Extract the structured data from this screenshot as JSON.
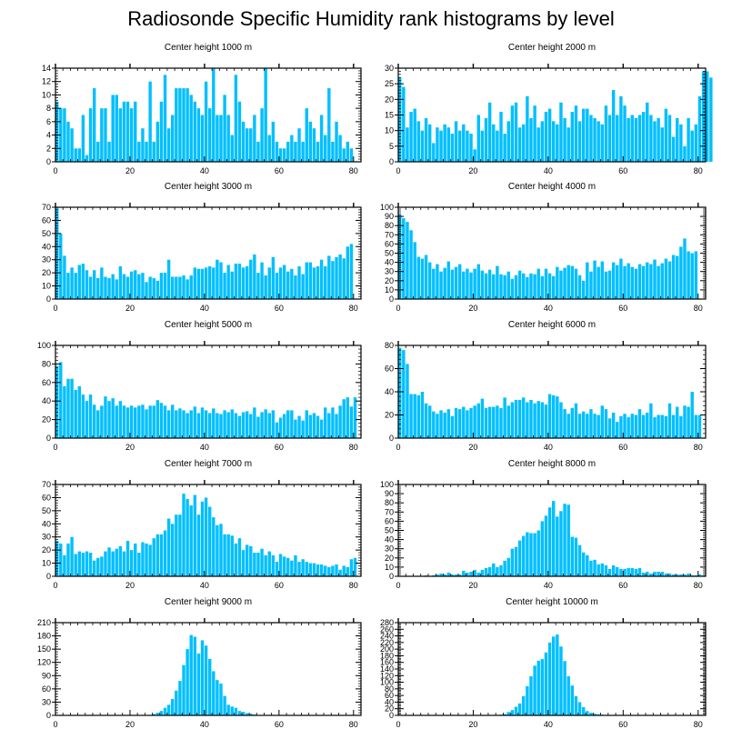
{
  "page_title": "Radiosonde Specific Humidity rank histograms by level",
  "colors": {
    "bar": "#00bfff",
    "axis": "#000000",
    "background": "#ffffff"
  },
  "chart_data": [
    {
      "type": "bar",
      "title": "Center height 1000 m",
      "xlim": [
        0,
        82
      ],
      "ylim": [
        0,
        14
      ],
      "xticks": [
        0,
        20,
        40,
        60,
        80
      ],
      "yticks": [
        0,
        2,
        4,
        6,
        8,
        10,
        12,
        14
      ],
      "x_start": 0,
      "values": [
        9,
        8,
        8,
        6,
        5,
        2,
        2,
        7,
        1,
        8,
        11,
        3,
        8,
        8,
        3,
        10,
        10,
        8,
        9,
        9,
        8,
        9,
        3,
        5,
        3,
        12,
        3,
        6,
        9,
        13,
        5,
        7,
        11,
        11,
        11,
        11,
        10,
        9,
        8,
        7,
        12,
        8,
        14,
        7,
        7,
        10,
        7,
        4,
        13,
        9,
        6,
        5,
        5,
        7,
        3,
        8,
        14,
        4,
        6,
        3,
        2,
        2,
        3,
        4,
        3,
        5,
        3,
        8,
        6,
        5,
        3,
        7,
        4,
        11,
        3,
        6,
        4,
        2,
        3,
        2
      ],
      "xlabel": "",
      "ylabel": ""
    },
    {
      "type": "bar",
      "title": "Center height 2000 m",
      "xlim": [
        0,
        82
      ],
      "ylim": [
        0,
        30
      ],
      "xticks": [
        0,
        20,
        40,
        60,
        80
      ],
      "yticks": [
        0,
        5,
        10,
        15,
        20,
        25,
        30
      ],
      "x_start": 0,
      "values": [
        27,
        24,
        11,
        16,
        17,
        13,
        10,
        14,
        12,
        6,
        11,
        10,
        12,
        11,
        9,
        13,
        10,
        12,
        10,
        9,
        4,
        15,
        10,
        14,
        19,
        12,
        10,
        16,
        9,
        13,
        18,
        19,
        11,
        12,
        21,
        14,
        18,
        11,
        13,
        16,
        17,
        13,
        12,
        19,
        14,
        11,
        16,
        18,
        13,
        17,
        17,
        15,
        14,
        13,
        12,
        18,
        15,
        23,
        15,
        21,
        18,
        14,
        15,
        14,
        15,
        16,
        19,
        15,
        13,
        14,
        11,
        17,
        15,
        8,
        14,
        12,
        5,
        14,
        10,
        12,
        21,
        29,
        29,
        27
      ],
      "xlabel": "",
      "ylabel": ""
    },
    {
      "type": "bar",
      "title": "Center height 3000 m",
      "xlim": [
        0,
        82
      ],
      "ylim": [
        0,
        70
      ],
      "xticks": [
        0,
        20,
        40,
        60,
        80
      ],
      "yticks": [
        0,
        10,
        20,
        30,
        40,
        50,
        60,
        70
      ],
      "x_start": 0,
      "values": [
        70,
        50,
        33,
        20,
        24,
        20,
        26,
        27,
        22,
        17,
        22,
        16,
        24,
        17,
        16,
        19,
        15,
        25,
        19,
        17,
        21,
        22,
        19,
        20,
        13,
        17,
        16,
        14,
        20,
        20,
        30,
        17,
        17,
        17,
        18,
        15,
        18,
        24,
        23,
        23,
        24,
        25,
        24,
        30,
        28,
        20,
        26,
        21,
        27,
        27,
        24,
        25,
        30,
        34,
        20,
        28,
        18,
        24,
        32,
        20,
        24,
        26,
        21,
        23,
        18,
        25,
        19,
        28,
        28,
        24,
        25,
        30,
        25,
        33,
        29,
        32,
        34,
        31,
        40,
        42
      ],
      "xlabel": "",
      "ylabel": ""
    },
    {
      "type": "bar",
      "title": "Center height 4000 m",
      "xlim": [
        0,
        82
      ],
      "ylim": [
        0,
        100
      ],
      "xticks": [
        0,
        20,
        40,
        60,
        80
      ],
      "yticks": [
        0,
        10,
        20,
        30,
        40,
        50,
        60,
        70,
        80,
        90,
        100
      ],
      "x_start": 0,
      "values": [
        92,
        88,
        84,
        75,
        62,
        46,
        44,
        48,
        40,
        33,
        38,
        30,
        34,
        41,
        32,
        35,
        38,
        30,
        33,
        29,
        33,
        38,
        31,
        28,
        32,
        27,
        36,
        27,
        26,
        30,
        22,
        26,
        31,
        28,
        24,
        28,
        27,
        33,
        25,
        33,
        28,
        25,
        35,
        31,
        34,
        37,
        36,
        33,
        26,
        20,
        40,
        30,
        42,
        35,
        41,
        30,
        31,
        40,
        37,
        44,
        36,
        39,
        35,
        33,
        38,
        36,
        40,
        38,
        43,
        36,
        39,
        44,
        41,
        48,
        47,
        57,
        66,
        52,
        50,
        52
      ],
      "xlabel": "",
      "ylabel": ""
    },
    {
      "type": "bar",
      "title": "Center height 5000 m",
      "xlim": [
        0,
        82
      ],
      "ylim": [
        0,
        100
      ],
      "xticks": [
        0,
        20,
        40,
        60,
        80
      ],
      "yticks": [
        0,
        20,
        40,
        60,
        80,
        100
      ],
      "x_start": 0,
      "values": [
        78,
        82,
        56,
        64,
        64,
        52,
        56,
        47,
        40,
        47,
        36,
        30,
        35,
        45,
        40,
        43,
        35,
        40,
        35,
        33,
        35,
        33,
        35,
        36,
        31,
        35,
        35,
        41,
        38,
        35,
        30,
        36,
        30,
        32,
        30,
        27,
        30,
        34,
        27,
        33,
        30,
        27,
        32,
        27,
        26,
        30,
        28,
        31,
        27,
        24,
        28,
        29,
        26,
        33,
        23,
        28,
        31,
        27,
        30,
        17,
        22,
        26,
        30,
        30,
        20,
        24,
        19,
        30,
        25,
        27,
        24,
        20,
        33,
        27,
        33,
        26,
        35,
        42,
        44,
        34,
        44
      ],
      "xlabel": "",
      "ylabel": ""
    },
    {
      "type": "bar",
      "title": "Center height 6000 m",
      "xlim": [
        0,
        82
      ],
      "ylim": [
        0,
        80
      ],
      "xticks": [
        0,
        20,
        40,
        60,
        80
      ],
      "yticks": [
        0,
        20,
        40,
        60,
        80
      ],
      "x_start": 0,
      "values": [
        78,
        76,
        64,
        38,
        38,
        37,
        40,
        30,
        28,
        23,
        21,
        24,
        22,
        25,
        19,
        26,
        25,
        27,
        24,
        26,
        28,
        30,
        34,
        26,
        27,
        27,
        28,
        26,
        35,
        28,
        31,
        33,
        33,
        35,
        31,
        33,
        30,
        32,
        31,
        29,
        38,
        37,
        36,
        31,
        25,
        21,
        26,
        30,
        21,
        23,
        21,
        25,
        21,
        20,
        28,
        25,
        17,
        22,
        14,
        19,
        21,
        18,
        21,
        20,
        25,
        20,
        22,
        30,
        18,
        20,
        20,
        19,
        30,
        20,
        27,
        19,
        28,
        27,
        40,
        20,
        20
      ],
      "xlabel": "",
      "ylabel": ""
    },
    {
      "type": "bar",
      "title": "Center height 7000 m",
      "xlim": [
        0,
        82
      ],
      "ylim": [
        0,
        70
      ],
      "xticks": [
        0,
        20,
        40,
        60,
        80
      ],
      "yticks": [
        0,
        10,
        20,
        30,
        40,
        50,
        60,
        70
      ],
      "x_start": 0,
      "values": [
        27,
        25,
        16,
        25,
        30,
        17,
        19,
        18,
        19,
        18,
        12,
        14,
        15,
        19,
        22,
        19,
        21,
        23,
        19,
        27,
        20,
        25,
        18,
        26,
        25,
        24,
        29,
        32,
        32,
        35,
        44,
        40,
        47,
        47,
        63,
        59,
        54,
        62,
        47,
        57,
        60,
        53,
        45,
        39,
        40,
        32,
        32,
        31,
        25,
        29,
        20,
        24,
        23,
        18,
        18,
        21,
        16,
        19,
        16,
        11,
        17,
        15,
        14,
        12,
        16,
        11,
        13,
        11,
        10,
        10,
        9,
        9,
        8,
        7,
        8,
        9,
        5,
        8,
        7,
        13,
        14
      ],
      "xlabel": "",
      "ylabel": ""
    },
    {
      "type": "bar",
      "title": "Center height 8000 m",
      "xlim": [
        0,
        82
      ],
      "ylim": [
        0,
        100
      ],
      "xticks": [
        0,
        20,
        40,
        60,
        80
      ],
      "yticks": [
        0,
        10,
        20,
        30,
        40,
        50,
        60,
        70,
        80,
        90,
        100
      ],
      "x_start": 0,
      "values": [
        0,
        0,
        0,
        0,
        0,
        0,
        0,
        1,
        0,
        1,
        2,
        3,
        2,
        4,
        2,
        2,
        2,
        6,
        4,
        5,
        7,
        4,
        7,
        9,
        10,
        14,
        10,
        12,
        17,
        20,
        30,
        32,
        39,
        44,
        48,
        47,
        47,
        50,
        60,
        66,
        75,
        82,
        65,
        71,
        79,
        78,
        43,
        42,
        34,
        26,
        23,
        17,
        18,
        13,
        14,
        12,
        8,
        12,
        10,
        8,
        8,
        9,
        9,
        8,
        9,
        4,
        5,
        3,
        5,
        5,
        5,
        3,
        3,
        2,
        2,
        2,
        2,
        3,
        1,
        1,
        2,
        1
      ],
      "xlabel": "",
      "ylabel": ""
    },
    {
      "type": "bar",
      "title": "Center height 9000 m",
      "xlim": [
        0,
        82
      ],
      "ylim": [
        0,
        210
      ],
      "xticks": [
        0,
        20,
        40,
        60,
        80
      ],
      "yticks": [
        0,
        30,
        60,
        90,
        120,
        150,
        180,
        210
      ],
      "x_start": 0,
      "values": [
        0,
        0,
        0,
        0,
        0,
        0,
        0,
        0,
        0,
        0,
        0,
        0,
        0,
        0,
        0,
        0,
        0,
        0,
        0,
        0,
        0,
        0,
        1,
        0,
        1,
        1,
        3,
        6,
        10,
        17,
        24,
        37,
        56,
        78,
        114,
        150,
        182,
        178,
        140,
        170,
        158,
        128,
        100,
        80,
        72,
        44,
        24,
        20,
        17,
        10,
        8,
        5,
        4,
        2,
        1,
        1,
        1,
        0,
        0,
        0,
        0,
        0,
        0,
        0,
        0,
        0,
        0,
        0,
        0,
        0,
        0,
        0,
        0,
        0,
        0,
        0,
        0,
        0,
        0,
        0,
        0,
        0
      ],
      "xlabel": "",
      "ylabel": ""
    },
    {
      "type": "bar",
      "title": "Center height 10000 m",
      "xlim": [
        0,
        82
      ],
      "ylim": [
        0,
        280
      ],
      "xticks": [
        0,
        20,
        40,
        60,
        80
      ],
      "yticks": [
        0,
        20,
        40,
        60,
        80,
        100,
        120,
        140,
        160,
        180,
        200,
        220,
        240,
        260,
        280
      ],
      "x_start": 0,
      "values": [
        0,
        0,
        0,
        0,
        0,
        0,
        0,
        0,
        0,
        0,
        0,
        0,
        0,
        0,
        0,
        0,
        0,
        0,
        0,
        0,
        0,
        0,
        0,
        0,
        0,
        0,
        1,
        2,
        4,
        10,
        16,
        26,
        36,
        58,
        88,
        118,
        150,
        165,
        170,
        190,
        220,
        238,
        244,
        208,
        164,
        118,
        90,
        58,
        40,
        25,
        13,
        8,
        5,
        3,
        2,
        1,
        1,
        0,
        0,
        0,
        0,
        0,
        0,
        0,
        0,
        0,
        0,
        0,
        0,
        0,
        0,
        0,
        0,
        0,
        0,
        0,
        0,
        0,
        0,
        0,
        0,
        0
      ],
      "xlabel": "",
      "ylabel": ""
    }
  ]
}
